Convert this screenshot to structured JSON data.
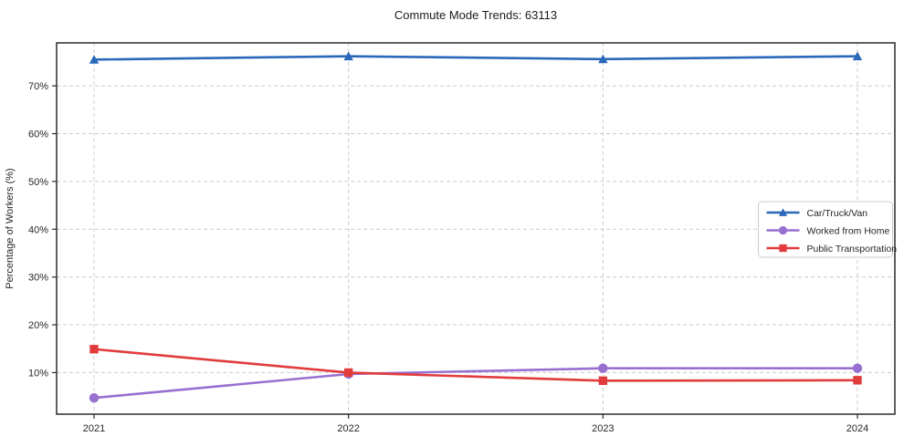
{
  "title": "Commute Mode Trends: 63113",
  "chart_data": {
    "type": "line",
    "title": "Commute Mode Trends: 63113",
    "xlabel": "",
    "ylabel": "Percentage of Workers (%)",
    "x": [
      2021,
      2022,
      2023,
      2024
    ],
    "xtick_labels": [
      "2021",
      "2022",
      "2023",
      "2024"
    ],
    "yticks": [
      10,
      20,
      30,
      40,
      50,
      60,
      70
    ],
    "ytick_labels": [
      "10%",
      "20%",
      "30%",
      "40%",
      "50%",
      "60%",
      "70%"
    ],
    "ylim": [
      1.3,
      79.0
    ],
    "grid": true,
    "grid_style": "dashed",
    "legend_position": "center-right",
    "series": [
      {
        "name": "Car/Truck/Van",
        "color": "#2a68ba",
        "marker": "triangle",
        "values": [
          75.5,
          76.2,
          75.6,
          76.2
        ]
      },
      {
        "name": "Worked from Home",
        "color": "#9770d0",
        "marker": "circle",
        "values": [
          4.7,
          9.7,
          10.9,
          10.9
        ]
      },
      {
        "name": "Public Transportation",
        "color": "#e23b3b",
        "marker": "square",
        "values": [
          14.9,
          10.0,
          8.3,
          8.4
        ]
      }
    ],
    "colors": {
      "grid": "#cccccc",
      "axis_border": "#2b2b2b",
      "background": "#ffffff",
      "legend_border": "#cccccc"
    }
  }
}
